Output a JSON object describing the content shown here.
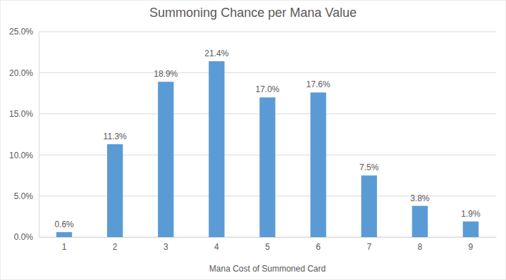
{
  "chart_data": {
    "type": "bar",
    "title": "Summoning Chance per Mana Value",
    "xlabel": "Mana Cost of Summoned Card",
    "categories": [
      "1",
      "2",
      "3",
      "4",
      "5",
      "6",
      "7",
      "8",
      "9"
    ],
    "values": [
      0.6,
      11.3,
      18.9,
      21.4,
      17.0,
      17.6,
      7.5,
      3.8,
      1.9
    ],
    "value_labels": [
      "0.6%",
      "11.3%",
      "18.9%",
      "21.4%",
      "17.0%",
      "17.6%",
      "7.5%",
      "3.8%",
      "1.9%"
    ],
    "color": "#5b9bd5",
    "ylim": [
      0,
      25
    ],
    "yticks": [
      {
        "value": 0,
        "label": "0.0%"
      },
      {
        "value": 5,
        "label": "5.0%"
      },
      {
        "value": 10,
        "label": "10.0%"
      },
      {
        "value": 15,
        "label": "15.0%"
      },
      {
        "value": 20,
        "label": "20.0%"
      },
      {
        "value": 25,
        "label": "25.0%"
      }
    ],
    "grid": true,
    "data_labels": true
  }
}
